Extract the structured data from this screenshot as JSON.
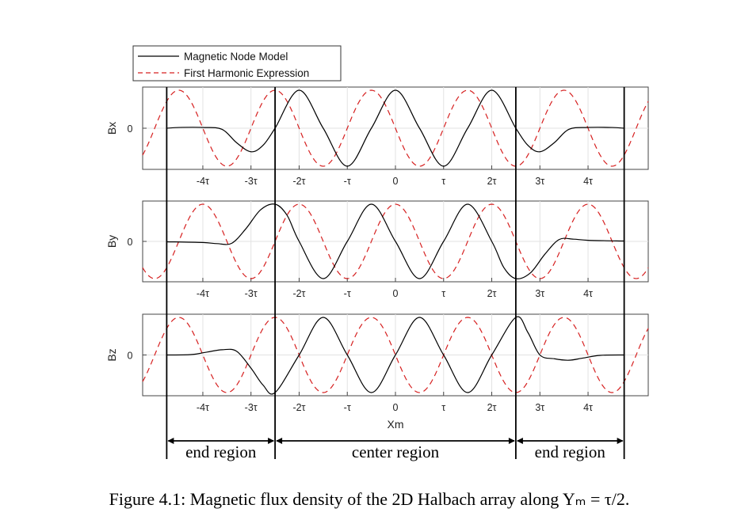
{
  "caption": "Figure 4.1: Magnetic flux density of the 2D Halbach array along Yₘ = τ/2.",
  "chart_data": {
    "type": "line",
    "xlabel": "Xm",
    "x_unit": "tau",
    "xlim": [
      -5.25,
      5.25
    ],
    "x_tick_values": [
      -4,
      -3,
      -2,
      -1,
      0,
      1,
      2,
      3,
      4
    ],
    "x_tick_labels": [
      "-4τ",
      "-3τ",
      "-2τ",
      "-τ",
      "0",
      "τ",
      "2τ",
      "3τ",
      "4τ"
    ],
    "y_tick_label": "0",
    "grid": true,
    "legend": {
      "placement": "top-left",
      "entries": [
        {
          "name": "Magnetic Node Model",
          "style": "solid",
          "color": "#000000"
        },
        {
          "name": "First Harmonic Expression",
          "style": "dashed",
          "color": "#d62020"
        }
      ]
    },
    "region_boundaries": [
      -4.75,
      -2.5,
      2.5,
      4.75
    ],
    "regions": [
      "end region",
      "center region",
      "end region"
    ],
    "panels": [
      {
        "ylabel": "Bx",
        "first_harmonic": {
          "amplitude": 1,
          "phase_deg": 90
        },
        "series": [
          {
            "name": "Magnetic Node Model",
            "x": [
              -4.75,
              -4.5,
              -4.0,
              -3.6,
              -3.3,
              -3.0,
              -2.75,
              -2.5,
              -2.0,
              -1.5,
              -1.0,
              -0.5,
              0.0,
              0.5,
              1.0,
              1.5,
              2.0,
              2.5,
              2.75,
              3.0,
              3.3,
              3.6,
              4.0,
              4.5,
              4.75
            ],
            "y": [
              0.0,
              0.02,
              0.02,
              -0.03,
              -0.38,
              -0.62,
              -0.45,
              0.0,
              1.0,
              0.0,
              -1.0,
              0.0,
              1.0,
              0.0,
              -1.0,
              0.0,
              1.0,
              0.0,
              -0.45,
              -0.62,
              -0.38,
              -0.03,
              0.02,
              0.02,
              0.0
            ]
          }
        ]
      },
      {
        "ylabel": "By",
        "first_harmonic": {
          "amplitude": 1,
          "phase_deg": 0
        },
        "series": [
          {
            "name": "Magnetic Node Model",
            "x": [
              -4.75,
              -4.0,
              -3.7,
              -3.4,
              -3.1,
              -2.8,
              -2.5,
              -2.25,
              -2.0,
              -1.5,
              -1.0,
              -0.5,
              0.0,
              0.5,
              1.0,
              1.5,
              2.0,
              2.25,
              2.5,
              2.8,
              3.1,
              3.4,
              3.7,
              4.0,
              4.75
            ],
            "y": [
              -0.01,
              -0.03,
              -0.06,
              -0.05,
              0.35,
              0.85,
              1.0,
              0.7,
              0.0,
              -1.0,
              0.0,
              1.0,
              0.0,
              -1.0,
              0.0,
              1.0,
              0.0,
              -0.7,
              -1.0,
              -0.85,
              -0.35,
              0.05,
              0.06,
              0.03,
              0.01
            ]
          }
        ]
      },
      {
        "ylabel": "Bz",
        "first_harmonic": {
          "amplitude": 1,
          "phase_deg": 90
        },
        "series": [
          {
            "name": "Magnetic Node Model",
            "x": [
              -4.75,
              -4.25,
              -3.9,
              -3.6,
              -3.3,
              -3.0,
              -2.75,
              -2.5,
              -2.0,
              -1.5,
              -1.0,
              -0.5,
              0.0,
              0.5,
              1.0,
              1.5,
              2.0,
              2.5,
              2.75,
              3.0,
              3.3,
              3.6,
              3.9,
              4.25,
              4.75
            ],
            "y": [
              0.0,
              0.01,
              0.08,
              0.14,
              0.1,
              -0.35,
              -0.8,
              -1.0,
              0.0,
              1.0,
              0.0,
              -1.0,
              0.0,
              1.0,
              0.0,
              -1.0,
              0.0,
              1.0,
              0.6,
              0.0,
              -0.1,
              -0.14,
              -0.08,
              -0.01,
              0.0
            ]
          }
        ]
      }
    ]
  }
}
